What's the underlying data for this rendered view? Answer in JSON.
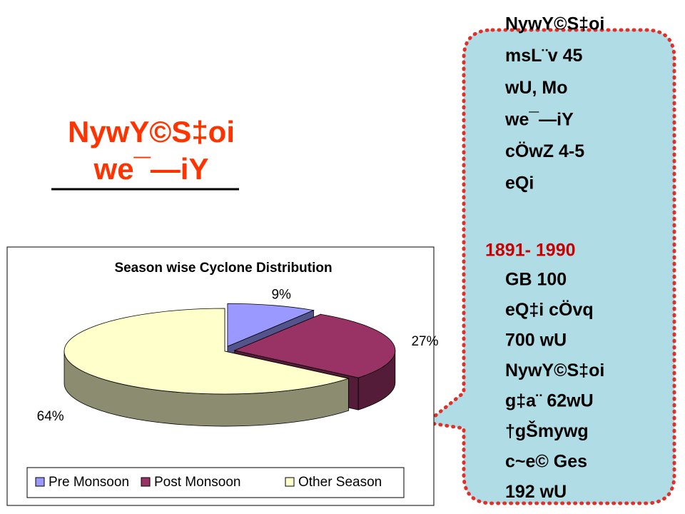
{
  "heading": [
    "NywY©S‡oi",
    "we¯—iY"
  ],
  "callout": {
    "intro": [
      "NywY©S‡oi",
      "msL¨v 45",
      "wU, Mo",
      "we¯—iY",
      "cÖwZ 4-5",
      "eQi"
    ],
    "period": "1891- 1990",
    "body": [
      "GB 100",
      "eQ‡i cÖvq",
      "700 wU",
      "NywY©S‡oi",
      "g‡a¨ 62wU",
      "†gŠmywg",
      "c~e© Ges",
      "192 wU"
    ]
  },
  "chart_data": {
    "type": "pie",
    "title": "Season wise Cyclone Distribution",
    "categories": [
      "Pre Monsoon",
      "Post Monsoon",
      "Other Season"
    ],
    "values": [
      9,
      27,
      64
    ],
    "value_labels": [
      "9%",
      "27%",
      "64%"
    ],
    "colors": [
      "#9999ff",
      "#993366",
      "#ffffcc"
    ]
  }
}
